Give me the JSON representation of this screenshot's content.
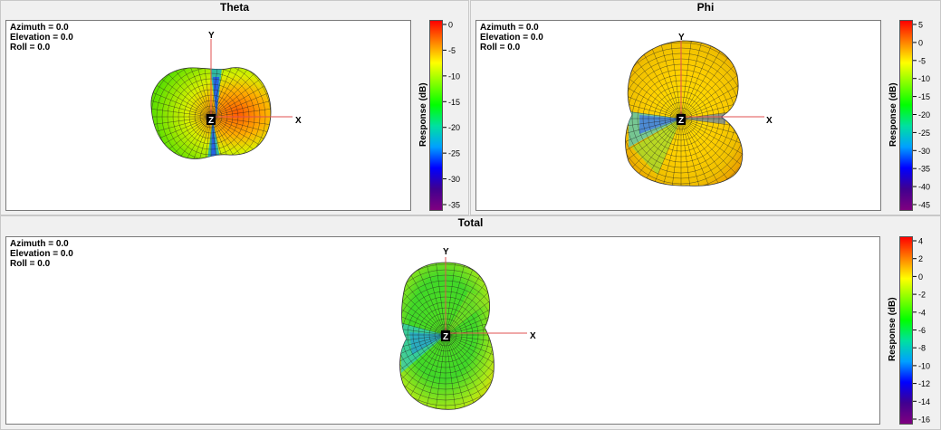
{
  "panels": {
    "theta": {
      "title": "Theta",
      "orientation": {
        "azimuth": "Azimuth = 0.0",
        "elevation": "Elevation = 0.0",
        "roll": "Roll = 0.0"
      },
      "axes": {
        "x": "X",
        "y": "Y",
        "z": "Z"
      },
      "colorbar": {
        "label": "Response  (dB)",
        "ticks": [
          "0",
          "-5",
          "-10",
          "-15",
          "-20",
          "-25",
          "-30",
          "-35"
        ]
      }
    },
    "phi": {
      "title": "Phi",
      "orientation": {
        "azimuth": "Azimuth = 0.0",
        "elevation": "Elevation = 0.0",
        "roll": "Roll = 0.0"
      },
      "axes": {
        "x": "X",
        "y": "Y",
        "z": "Z"
      },
      "colorbar": {
        "label": "Response  (dB)",
        "ticks": [
          "5",
          "0",
          "-5",
          "-10",
          "-15",
          "-20",
          "-25",
          "-30",
          "-35",
          "-40",
          "-45"
        ]
      }
    },
    "total": {
      "title": "Total",
      "orientation": {
        "azimuth": "Azimuth = 0.0",
        "elevation": "Elevation = 0.0",
        "roll": "Roll = 0.0"
      },
      "axes": {
        "x": "X",
        "y": "Y",
        "z": "Z"
      },
      "colorbar": {
        "label": "Response  (dB)",
        "ticks": [
          "4",
          "2",
          "0",
          "-2",
          "-4",
          "-6",
          "-8",
          "-10",
          "-12",
          "-14",
          "-16"
        ]
      }
    }
  },
  "colors": {
    "colormap": [
      "#ff0000",
      "#ff8000",
      "#ffff00",
      "#80ff00",
      "#00ff00",
      "#00e0a0",
      "#00a0ff",
      "#0000ff",
      "#400090",
      "#800080"
    ],
    "axis_line": "#e05050"
  }
}
